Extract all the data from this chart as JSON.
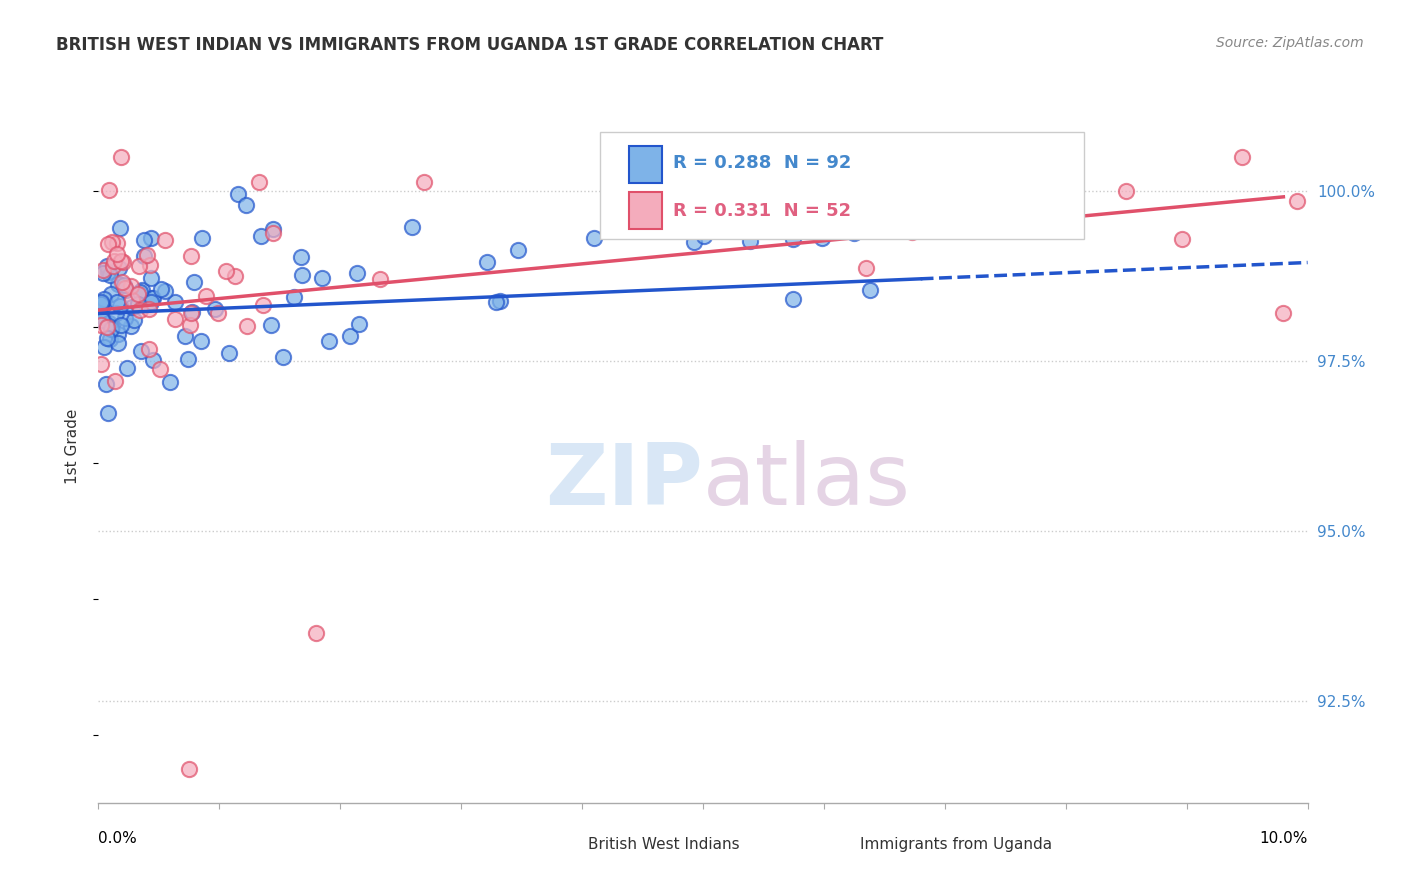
{
  "title": "BRITISH WEST INDIAN VS IMMIGRANTS FROM UGANDA 1ST GRADE CORRELATION CHART",
  "source": "Source: ZipAtlas.com",
  "ylabel": "1st Grade",
  "ylabel_right_ticks": [
    92.5,
    95.0,
    97.5,
    100.0
  ],
  "ylabel_right_labels": [
    "92.5%",
    "95.0%",
    "97.5%",
    "100.0%"
  ],
  "xmin": 0.0,
  "xmax": 10.0,
  "ymin": 91.0,
  "ymax": 101.5,
  "R_blue": 0.288,
  "N_blue": 92,
  "R_pink": 0.331,
  "N_pink": 52,
  "blue_color": "#7EB3E8",
  "pink_color": "#F4ACBC",
  "blue_line_color": "#2255CC",
  "pink_line_color": "#E0506A",
  "slope_blue": 0.075,
  "intercept_blue": 98.2,
  "slope_pink": 0.17,
  "intercept_pink": 98.25,
  "blue_dash_start": 6.8,
  "watermark_zip_color": "#C0D8F0",
  "watermark_atlas_color": "#D4B8D4"
}
